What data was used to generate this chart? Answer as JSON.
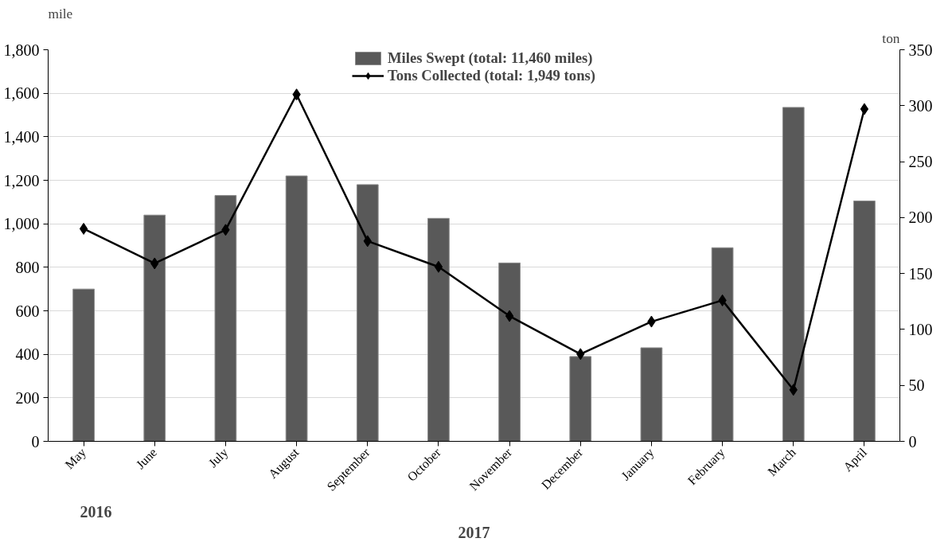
{
  "chart_data": {
    "type": "bar",
    "categories": [
      "May",
      "June",
      "July",
      "August",
      "September",
      "October",
      "November",
      "December",
      "January",
      "February",
      "March",
      "April"
    ],
    "ylabel": "mile",
    "y2label": "ton",
    "series": [
      {
        "name": "Miles Swept (total: 11,460 miles)",
        "color": "#595959",
        "values": [
          700,
          1040,
          1130,
          1220,
          1180,
          1025,
          820,
          390,
          430,
          890,
          1535,
          1105
        ]
      },
      {
        "name": "Tons Collected (total: 1,949 tons)",
        "type": "line",
        "axis": "y2",
        "color": "#000000",
        "marker": "diamond",
        "values": [
          190,
          159,
          189,
          310,
          179,
          156,
          112,
          78,
          107,
          126,
          46,
          297
        ]
      }
    ],
    "ylim": [
      0,
      1800
    ],
    "yticks": [
      0,
      200,
      400,
      600,
      800,
      {
        "value": 1000,
        "label": "1,000"
      },
      {
        "value": 1200,
        "label": "1,200"
      },
      {
        "value": 1400,
        "label": "1,400"
      },
      {
        "value": 1600,
        "label": "1,600"
      },
      {
        "value": 1800,
        "label": "1,800"
      }
    ],
    "y2lim": [
      0,
      350
    ],
    "y2ticks": [
      0,
      50,
      100,
      150,
      200,
      250,
      300,
      350
    ],
    "grid": "y",
    "legend": "top",
    "annotations": [
      "2016",
      "2017"
    ]
  }
}
